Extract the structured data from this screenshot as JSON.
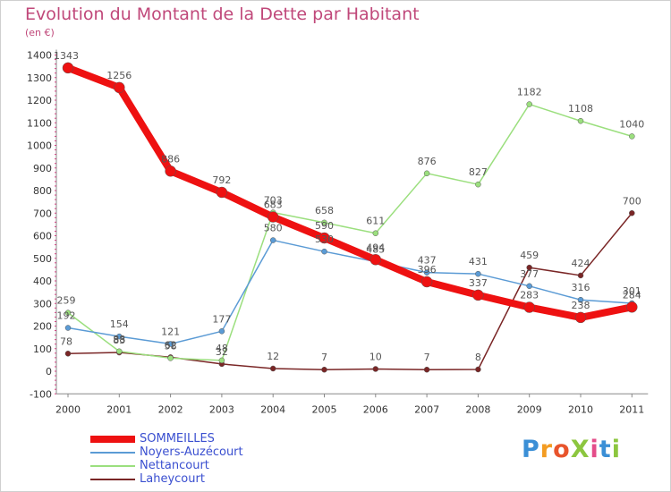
{
  "title": "Evolution du Montant de la Dette par Habitant",
  "unit": "(en €)",
  "logo": "ProXiti",
  "chart_data": {
    "type": "line",
    "title": "Evolution du Montant de la Dette par Habitant",
    "x": [
      "2000",
      "2001",
      "2002",
      "2003",
      "2004",
      "2005",
      "2006",
      "2007",
      "2008",
      "2009",
      "2010",
      "2011"
    ],
    "yticks": [
      -100,
      0,
      100,
      200,
      300,
      400,
      500,
      600,
      700,
      800,
      900,
      1000,
      1100,
      1200,
      1300,
      1400
    ],
    "ylim": [
      -100,
      1400
    ],
    "grid": false,
    "legend": "bottom-left",
    "series": [
      {
        "name": "SOMMEILLES",
        "color": "#ee1111",
        "width": 8,
        "values": [
          1343,
          1256,
          886,
          792,
          683,
          590,
          494,
          396,
          337,
          283,
          238,
          284
        ]
      },
      {
        "name": "Noyers-Auzécourt",
        "color": "#5b9bd5",
        "width": 1.5,
        "values": [
          192,
          154,
          121,
          177,
          580,
          530,
          485,
          437,
          431,
          377,
          316,
          301
        ]
      },
      {
        "name": "Nettancourt",
        "color": "#9bdf7e",
        "width": 1.5,
        "values": [
          259,
          88,
          58,
          48,
          703,
          658,
          611,
          876,
          827,
          1182,
          1108,
          1040
        ]
      },
      {
        "name": "Laheycourt",
        "color": "#7a2626",
        "width": 1.5,
        "values": [
          78,
          83,
          62,
          32,
          12,
          7,
          10,
          7,
          8,
          459,
          424,
          700
        ]
      }
    ]
  }
}
